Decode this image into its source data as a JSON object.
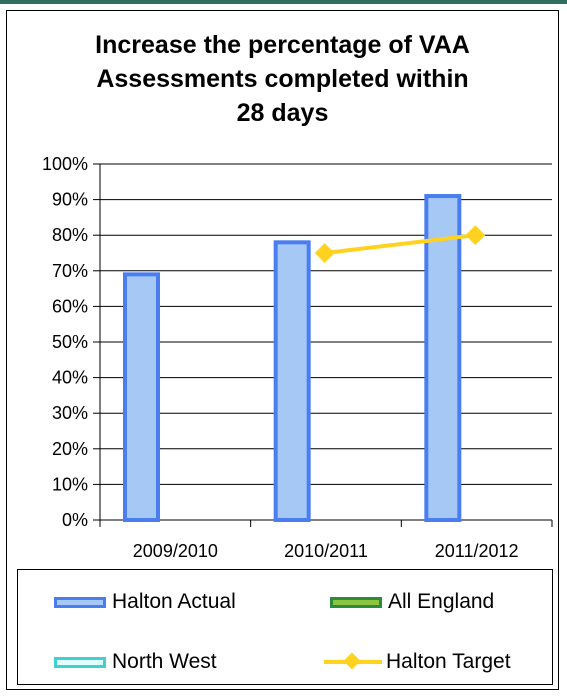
{
  "chart_data": {
    "type": "bar",
    "title_lines": [
      "Increase the percentage of VAA",
      "Assessments completed within",
      "28 days"
    ],
    "categories": [
      "2009/2010",
      "2010/2011",
      "2011/2012"
    ],
    "y_ticks": [
      "0%",
      "10%",
      "20%",
      "30%",
      "40%",
      "50%",
      "60%",
      "70%",
      "80%",
      "90%",
      "100%"
    ],
    "ylim": [
      0,
      100
    ],
    "grid": true,
    "legend_position": "bottom",
    "series": [
      {
        "name": "Halton Actual",
        "type": "bar",
        "values": [
          69,
          78,
          91
        ],
        "fill": "#a6c8f5",
        "stroke": "#4a7ef0"
      },
      {
        "name": "All England",
        "type": "bar",
        "values": [
          null,
          null,
          null
        ],
        "fill": "#8cc63f",
        "stroke": "#2e8b3e"
      },
      {
        "name": "North West",
        "type": "bar",
        "values": [
          null,
          null,
          null
        ],
        "fill": "#e0ffff",
        "stroke": "#40d0d0"
      },
      {
        "name": "Halton Target",
        "type": "line",
        "values": [
          null,
          75,
          80
        ],
        "color": "#ffd21f"
      }
    ]
  }
}
